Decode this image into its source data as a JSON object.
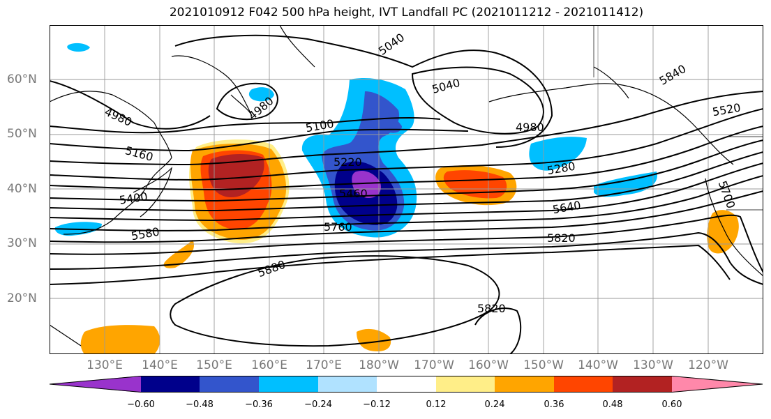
{
  "title": "2021010912 F042 500 hPa height, IVT Landfall PC (2021011212 - 2021011412)",
  "lat_labels": [
    "60°N",
    "50°N",
    "40°N",
    "30°N",
    "20°N"
  ],
  "lon_labels": [
    "130°E",
    "140°E",
    "150°E",
    "160°E",
    "170°E",
    "180°W",
    "170°W",
    "160°W",
    "150°W",
    "140°W",
    "130°W",
    "120°W"
  ],
  "contour_labels": [
    "5040",
    "5040",
    "4980",
    "4980",
    "4980",
    "5100",
    "5160",
    "5220",
    "5280",
    "5400",
    "5460",
    "5580",
    "5640",
    "5760",
    "5820",
    "5820",
    "5880",
    "5840",
    "5520",
    "5700"
  ],
  "colorbar": {
    "colors": [
      "#9933cc",
      "#00008b",
      "#3355cc",
      "#00bfff",
      "#b0e2ff",
      "#ffffff",
      "#ffee88",
      "#ffa500",
      "#ff4500",
      "#b22222",
      "#ff88aa"
    ],
    "ticks": [
      "−0.60",
      "−0.48",
      "−0.36",
      "−0.24",
      "−0.12",
      "0.12",
      "0.24",
      "0.36",
      "0.48",
      "0.60"
    ]
  }
}
